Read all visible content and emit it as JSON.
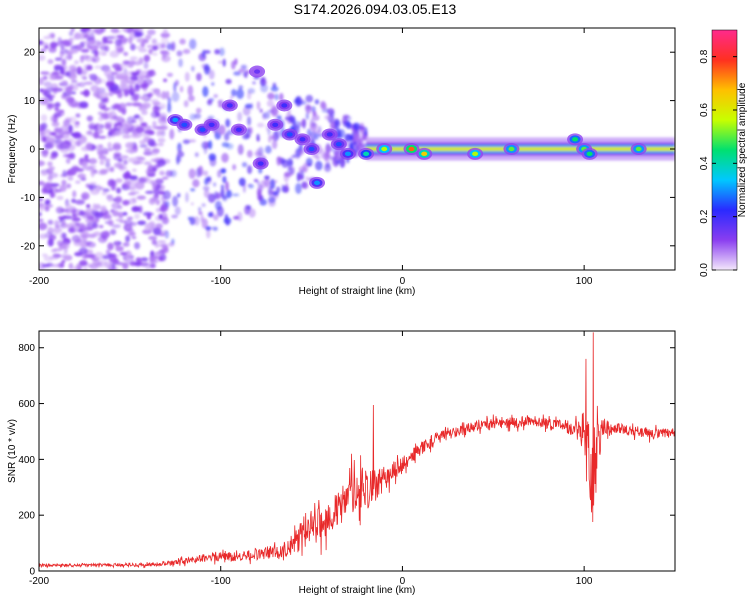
{
  "title": "S174.2026.094.03.05.E13",
  "colors": {
    "snr_line": "#e8292a",
    "frame": "#000000",
    "background": "#ffffff",
    "colorbar_stops": [
      "#f4e8fb",
      "#8a3ef0",
      "#2a2aff",
      "#00c8ff",
      "#00e070",
      "#c8ff00",
      "#ffc000",
      "#ff3020",
      "#ff2a8c"
    ]
  },
  "chart_data": [
    {
      "type": "heatmap",
      "name": "spectrogram",
      "xlabel": "Height of straight line (km)",
      "ylabel": "Frequency (Hz)",
      "xlim": [
        -200,
        150
      ],
      "ylim": [
        -25,
        25
      ],
      "xticks": [
        -200,
        -100,
        0,
        100
      ],
      "yticks": [
        -20,
        -10,
        0,
        10,
        20
      ],
      "xtick_labels": [
        "-200",
        "-100",
        "0",
        "100"
      ],
      "ytick_labels": [
        "-20",
        "-10",
        "0",
        "10",
        "20"
      ],
      "colorbar": {
        "label": "Normalized spectral amplitude",
        "range": [
          0.0,
          0.9
        ],
        "ticks": [
          0.0,
          0.2,
          0.4,
          0.6,
          0.8
        ],
        "tick_labels": [
          "0.0",
          "0.2",
          "0.4",
          "0.6",
          "0.8"
        ]
      },
      "regions": [
        {
          "x_range": [
            -200,
            -130
          ],
          "description": "diffuse low-amplitude noise",
          "amplitude": 0.1
        },
        {
          "x_range": [
            -130,
            -20
          ],
          "description": "scattered blobs converging to 0 Hz",
          "amplitude": 0.3
        },
        {
          "x_range": [
            -20,
            150
          ],
          "description": "narrow band at 0 Hz",
          "amplitude": 0.6
        }
      ],
      "features": [
        {
          "x": -125,
          "y": 6,
          "value": 0.3
        },
        {
          "x": -120,
          "y": 5,
          "value": 0.25
        },
        {
          "x": -110,
          "y": 4,
          "value": 0.25
        },
        {
          "x": -105,
          "y": 5,
          "value": 0.2
        },
        {
          "x": -95,
          "y": 9,
          "value": 0.2
        },
        {
          "x": -90,
          "y": 4,
          "value": 0.2
        },
        {
          "x": -80,
          "y": 16,
          "value": 0.15
        },
        {
          "x": -78,
          "y": -3,
          "value": 0.2
        },
        {
          "x": -70,
          "y": 5,
          "value": 0.2
        },
        {
          "x": -65,
          "y": 9,
          "value": 0.2
        },
        {
          "x": -62,
          "y": 3,
          "value": 0.25
        },
        {
          "x": -55,
          "y": 2,
          "value": 0.2
        },
        {
          "x": -50,
          "y": 0,
          "value": 0.25
        },
        {
          "x": -47,
          "y": -7,
          "value": 0.3
        },
        {
          "x": -40,
          "y": 3,
          "value": 0.2
        },
        {
          "x": -35,
          "y": 1,
          "value": 0.25
        },
        {
          "x": -30,
          "y": -1,
          "value": 0.3
        },
        {
          "x": -20,
          "y": -1,
          "value": 0.4
        },
        {
          "x": -10,
          "y": 0,
          "value": 0.55
        },
        {
          "x": 5,
          "y": 0,
          "value": 0.75
        },
        {
          "x": 12,
          "y": -1,
          "value": 0.65
        },
        {
          "x": 40,
          "y": -1,
          "value": 0.55
        },
        {
          "x": 60,
          "y": 0,
          "value": 0.5
        },
        {
          "x": 95,
          "y": 2,
          "value": 0.45
        },
        {
          "x": 100,
          "y": 0,
          "value": 0.5
        },
        {
          "x": 103,
          "y": -1,
          "value": 0.45
        },
        {
          "x": 130,
          "y": 0,
          "value": 0.5
        }
      ]
    },
    {
      "type": "line",
      "name": "snr",
      "xlabel": "Height of straight line (km)",
      "ylabel": "SNR (10 * v/v)",
      "xlim": [
        -200,
        150
      ],
      "ylim": [
        0,
        860
      ],
      "xticks": [
        -200,
        -100,
        0,
        100
      ],
      "yticks": [
        0,
        200,
        400,
        600,
        800
      ],
      "xtick_labels": [
        "-200",
        "-100",
        "0",
        "100"
      ],
      "ytick_labels": [
        "0",
        "200",
        "400",
        "600",
        "800"
      ],
      "series": [
        {
          "name": "SNR",
          "x": [
            -200,
            -180,
            -160,
            -140,
            -130,
            -120,
            -110,
            -100,
            -90,
            -80,
            -70,
            -60,
            -55,
            -50,
            -45,
            -40,
            -35,
            -30,
            -25,
            -20,
            -15,
            -10,
            -5,
            0,
            10,
            20,
            30,
            40,
            50,
            60,
            70,
            80,
            90,
            95,
            100,
            102,
            105,
            108,
            110,
            115,
            120,
            130,
            140,
            150
          ],
          "values": [
            20,
            20,
            22,
            22,
            25,
            35,
            45,
            55,
            50,
            60,
            70,
            90,
            150,
            170,
            160,
            200,
            220,
            250,
            300,
            300,
            300,
            330,
            360,
            380,
            440,
            480,
            500,
            520,
            530,
            530,
            540,
            530,
            520,
            500,
            470,
            420,
            380,
            470,
            520,
            510,
            510,
            500,
            490,
            495
          ],
          "noise_amplitude": [
            10,
            10,
            10,
            12,
            15,
            20,
            25,
            35,
            30,
            40,
            45,
            60,
            100,
            110,
            120,
            110,
            120,
            120,
            130,
            150,
            110,
            80,
            60,
            50,
            45,
            40,
            35,
            35,
            35,
            35,
            35,
            35,
            40,
            60,
            150,
            280,
            300,
            200,
            60,
            40,
            35,
            35,
            35,
            35
          ],
          "spikes": [
            {
              "x": -28,
              "value": 420
            },
            {
              "x": -16,
              "value": 595
            },
            {
              "x": 101,
              "value": 760
            },
            {
              "x": 105,
              "value": 855
            },
            {
              "x": 104,
              "value": 210
            }
          ]
        }
      ]
    }
  ]
}
